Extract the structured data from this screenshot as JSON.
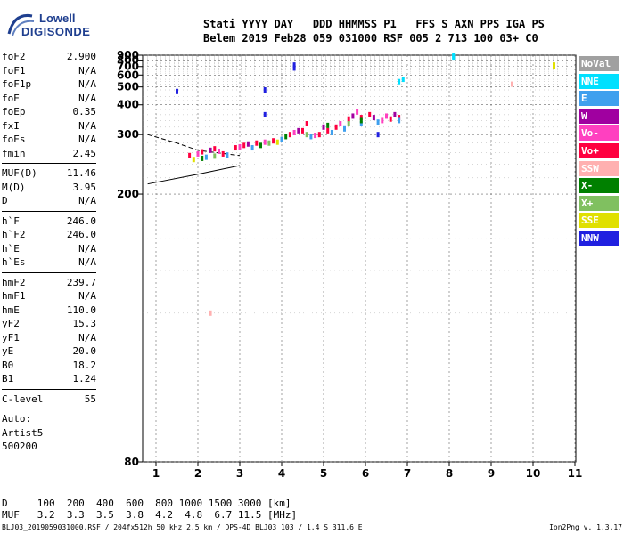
{
  "logo": {
    "line1": "Lowell",
    "line2": "DIGISONDE"
  },
  "header": {
    "line1": "Stati YYYY DAY   DDD HHMMSS P1   FFS S AXN PPS IGA PS",
    "line2": "Belem 2019 Feb28 059 031000 RSF 005 2 713 100 03+ C0"
  },
  "params": {
    "group1": [
      {
        "label": "foF2",
        "value": "2.900"
      },
      {
        "label": "foF1",
        "value": "N/A"
      },
      {
        "label": "foF1p",
        "value": "N/A"
      },
      {
        "label": "foE",
        "value": "N/A"
      },
      {
        "label": "foEp",
        "value": "0.35"
      },
      {
        "label": "fxI",
        "value": "N/A"
      },
      {
        "label": "foEs",
        "value": "N/A"
      },
      {
        "label": "fmin",
        "value": "2.45"
      }
    ],
    "group2": [
      {
        "label": "MUF(D)",
        "value": "11.46"
      },
      {
        "label": "M(D)",
        "value": "3.95"
      },
      {
        "label": "D",
        "value": "N/A"
      }
    ],
    "group3": [
      {
        "label": "h`F",
        "value": "246.0"
      },
      {
        "label": "h`F2",
        "value": "246.0"
      },
      {
        "label": "h`E",
        "value": "N/A"
      },
      {
        "label": "h`Es",
        "value": "N/A"
      }
    ],
    "group4": [
      {
        "label": "hmF2",
        "value": "239.7"
      },
      {
        "label": "hmF1",
        "value": "N/A"
      },
      {
        "label": "hmE",
        "value": "110.0"
      },
      {
        "label": "yF2",
        "value": "15.3"
      },
      {
        "label": "yF1",
        "value": "N/A"
      },
      {
        "label": "yE",
        "value": "20.0"
      },
      {
        "label": "B0",
        "value": "18.2"
      },
      {
        "label": "B1",
        "value": "1.24"
      }
    ],
    "group5": [
      {
        "label": "C-level",
        "value": "55"
      }
    ],
    "auto": [
      "Auto:",
      "Artist5",
      "500200"
    ]
  },
  "legend": [
    {
      "label": "NoVal",
      "color": "#a0a0a0"
    },
    {
      "label": "NNE",
      "color": "#00e0ff"
    },
    {
      "label": "E",
      "color": "#3fa0ee"
    },
    {
      "label": "W",
      "color": "#a000a0"
    },
    {
      "label": "Vo-",
      "color": "#ff40c0"
    },
    {
      "label": "Vo+",
      "color": "#ff0040"
    },
    {
      "label": "SSW",
      "color": "#ffb0b0"
    },
    {
      "label": "X-",
      "color": "#008000"
    },
    {
      "label": "X+",
      "color": "#80c060"
    },
    {
      "label": "SSE",
      "color": "#e0e000"
    },
    {
      "label": "NNW",
      "color": "#2020e0"
    }
  ],
  "bottom": {
    "d_line": "D     100  200  400  600  800 1000 1500 3000 [km]",
    "muf_line": "MUF   3.2  3.3  3.5  3.8  4.2  4.8  6.7 11.5 [MHz]"
  },
  "footer": {
    "left": "BLJ03_2019059031000.RSF / 204fx512h 50 kHz 2.5 km / DPS-4D BLJ03 103 / 1.4 S 311.6 E",
    "right": "Ion2Png v. 1.3.17"
  },
  "chart_data": {
    "type": "scatter",
    "title": "",
    "xlabel": "",
    "ylabel": "",
    "xlim": [
      0.8,
      11
    ],
    "ylim": [
      80,
      900
    ],
    "xticks": [
      "1",
      "2",
      "3",
      "4",
      "5",
      "6",
      "7",
      "8",
      "9",
      "10",
      "11"
    ],
    "yticks": [
      "80",
      "200",
      "300",
      "400",
      "500",
      "600",
      "700",
      "800",
      "900"
    ],
    "grid": true,
    "legend_position": "right",
    "series": [
      {
        "name": "Vo+",
        "color": "#ff0040",
        "points": [
          [
            1.8,
            255
          ],
          [
            2.1,
            262
          ],
          [
            2.4,
            268
          ],
          [
            2.6,
            258
          ],
          [
            2.9,
            270
          ],
          [
            3.1,
            275
          ],
          [
            3.4,
            280
          ],
          [
            3.8,
            285
          ],
          [
            4.2,
            300
          ],
          [
            4.5,
            310
          ],
          [
            4.6,
            330
          ],
          [
            4.9,
            300
          ],
          [
            5.1,
            310
          ],
          [
            5.3,
            320
          ],
          [
            5.6,
            345
          ],
          [
            5.9,
            350
          ],
          [
            6.1,
            360
          ],
          [
            6.6,
            345
          ],
          [
            6.8,
            350
          ]
        ]
      },
      {
        "name": "Vo-",
        "color": "#ff40c0",
        "points": [
          [
            2.0,
            258
          ],
          [
            2.5,
            263
          ],
          [
            3.0,
            272
          ],
          [
            3.6,
            282
          ],
          [
            4.3,
            305
          ],
          [
            4.8,
            298
          ],
          [
            5.4,
            330
          ],
          [
            5.8,
            370
          ],
          [
            6.4,
            340
          ],
          [
            6.5,
            355
          ]
        ]
      },
      {
        "name": "E",
        "color": "#3fa0ee",
        "points": [
          [
            2.2,
            252
          ],
          [
            2.7,
            256
          ],
          [
            3.3,
            270
          ],
          [
            4.0,
            288
          ],
          [
            4.7,
            295
          ],
          [
            5.2,
            305
          ],
          [
            5.5,
            315
          ],
          [
            5.9,
            330
          ],
          [
            6.3,
            335
          ],
          [
            6.8,
            340
          ]
        ]
      },
      {
        "name": "W",
        "color": "#a000a0",
        "points": [
          [
            2.3,
            265
          ],
          [
            3.2,
            278
          ],
          [
            4.4,
            310
          ],
          [
            5.0,
            320
          ],
          [
            5.7,
            355
          ],
          [
            6.2,
            350
          ],
          [
            6.7,
            360
          ]
        ]
      },
      {
        "name": "X-",
        "color": "#008000",
        "points": [
          [
            2.1,
            250
          ],
          [
            3.5,
            275
          ],
          [
            4.1,
            295
          ],
          [
            5.1,
            325
          ],
          [
            5.9,
            340
          ]
        ]
      },
      {
        "name": "X+",
        "color": "#80c060",
        "points": [
          [
            2.4,
            254
          ],
          [
            3.7,
            280
          ],
          [
            4.6,
            300
          ],
          [
            5.6,
            330
          ]
        ]
      },
      {
        "name": "SSE",
        "color": "#e0e000",
        "points": [
          [
            1.9,
            248
          ],
          [
            3.9,
            282
          ],
          [
            10.5,
            720
          ],
          [
            10.5,
            700
          ]
        ]
      },
      {
        "name": "NNW",
        "color": "#2020e0",
        "points": [
          [
            3.6,
            480
          ],
          [
            3.6,
            360
          ],
          [
            4.3,
            720
          ],
          [
            4.3,
            680
          ],
          [
            6.3,
            300
          ],
          [
            1.5,
            470
          ]
        ]
      },
      {
        "name": "NNE",
        "color": "#00e0ff",
        "points": [
          [
            6.8,
            540
          ],
          [
            6.9,
            560
          ],
          [
            8.1,
            880
          ],
          [
            8.1,
            860
          ]
        ]
      },
      {
        "name": "SSW",
        "color": "#ffb0b0",
        "points": [
          [
            2.3,
            120
          ],
          [
            9.5,
            520
          ]
        ]
      }
    ],
    "trace_lines": [
      {
        "name": "",
        "style": "solid",
        "points": [
          [
            0.8,
            212
          ],
          [
            2.0,
            225
          ],
          [
            3.0,
            238
          ]
        ]
      },
      {
        "name": "",
        "style": "dashed",
        "points": [
          [
            0.8,
            300
          ],
          [
            1.5,
            280
          ],
          [
            2.0,
            265
          ],
          [
            3.0,
            255
          ]
        ]
      }
    ]
  }
}
